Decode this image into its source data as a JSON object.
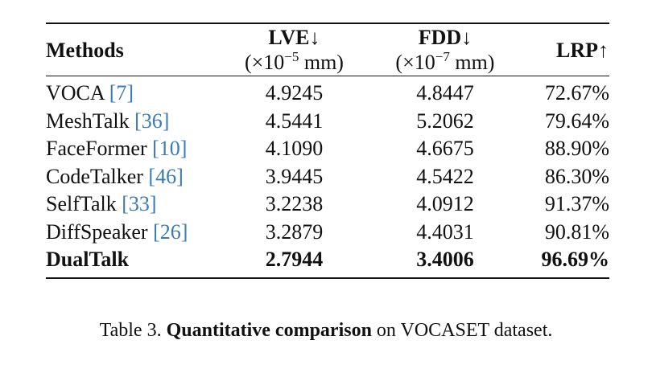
{
  "table": {
    "headers": {
      "methods": "Methods",
      "lve": {
        "label": "LVE↓",
        "unit_prefix": "(×10",
        "unit_exp": "−5",
        "unit_suffix": " mm)"
      },
      "fdd": {
        "label": "FDD↓",
        "unit_prefix": "(×10",
        "unit_exp": "−7",
        "unit_suffix": " mm)"
      },
      "lrp": "LRP↑"
    },
    "rows": [
      {
        "name": "VOCA ",
        "ref": "[7]",
        "lve": "4.9245",
        "fdd": "4.8447",
        "lrp": "72.67%"
      },
      {
        "name": "MeshTalk ",
        "ref": "[36]",
        "lve": "4.5441",
        "fdd": "5.2062",
        "lrp": "79.64%"
      },
      {
        "name": "FaceFormer ",
        "ref": "[10]",
        "lve": "4.1090",
        "fdd": "4.6675",
        "lrp": "88.90%"
      },
      {
        "name": "CodeTalker ",
        "ref": "[46]",
        "lve": "3.9445",
        "fdd": "4.5422",
        "lrp": "86.30%"
      },
      {
        "name": "SelfTalk ",
        "ref": "[33]",
        "lve": "3.2238",
        "fdd": "4.0912",
        "lrp": "91.37%"
      },
      {
        "name": "DiffSpeaker ",
        "ref": "[26]",
        "lve": "3.2879",
        "fdd": "4.4031",
        "lrp": "90.81%"
      },
      {
        "name": "DualTalk",
        "ref": "",
        "lve": "2.7944",
        "fdd": "3.4006",
        "lrp": "96.69%"
      }
    ]
  },
  "caption": {
    "prefix": "Table 3. ",
    "bold": "Quantitative comparison",
    "suffix": " on VOCASET dataset."
  },
  "colors": {
    "reference_link": "#3a7ab5",
    "text": "#111111"
  }
}
